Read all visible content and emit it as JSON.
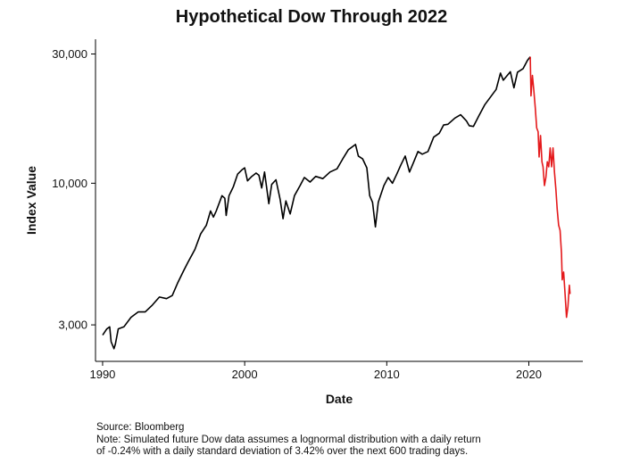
{
  "chart_data": {
    "type": "line",
    "title": "Hypothetical Dow Through 2022",
    "xlabel": "Date",
    "ylabel": "Index Value",
    "yscale": "log",
    "xlim": [
      1989.5,
      2023.8
    ],
    "ylim": [
      2200,
      34000
    ],
    "x_ticks": [
      1990,
      2000,
      2010,
      2020
    ],
    "x_tick_labels": [
      "1990",
      "2000",
      "2010",
      "2020"
    ],
    "y_ticks": [
      3000,
      10000,
      30000
    ],
    "y_tick_labels": [
      "3,000",
      "10,000",
      "30,000"
    ],
    "grid": false,
    "legend": "none",
    "series": [
      {
        "color": "#000000",
        "points": [
          [
            1990.0,
            2750
          ],
          [
            1990.3,
            2900
          ],
          [
            1990.5,
            2950
          ],
          [
            1990.6,
            2600
          ],
          [
            1990.8,
            2450
          ],
          [
            1990.9,
            2550
          ],
          [
            1991.1,
            2900
          ],
          [
            1991.5,
            2950
          ],
          [
            1992.0,
            3200
          ],
          [
            1992.5,
            3350
          ],
          [
            1993.0,
            3350
          ],
          [
            1993.5,
            3550
          ],
          [
            1994.0,
            3800
          ],
          [
            1994.5,
            3750
          ],
          [
            1994.9,
            3850
          ],
          [
            1995.3,
            4300
          ],
          [
            1995.7,
            4750
          ],
          [
            1996.0,
            5100
          ],
          [
            1996.5,
            5700
          ],
          [
            1996.9,
            6500
          ],
          [
            1997.3,
            7000
          ],
          [
            1997.6,
            7900
          ],
          [
            1997.8,
            7500
          ],
          [
            1998.0,
            7900
          ],
          [
            1998.4,
            9000
          ],
          [
            1998.6,
            8800
          ],
          [
            1998.7,
            7600
          ],
          [
            1998.9,
            9000
          ],
          [
            1999.2,
            9700
          ],
          [
            1999.5,
            10800
          ],
          [
            1999.8,
            11200
          ],
          [
            2000.0,
            11400
          ],
          [
            2000.2,
            10200
          ],
          [
            2000.5,
            10600
          ],
          [
            2000.8,
            10900
          ],
          [
            2001.0,
            10700
          ],
          [
            2001.2,
            9600
          ],
          [
            2001.4,
            11000
          ],
          [
            2001.7,
            8400
          ],
          [
            2001.9,
            9900
          ],
          [
            2002.2,
            10300
          ],
          [
            2002.5,
            8700
          ],
          [
            2002.7,
            7400
          ],
          [
            2002.9,
            8600
          ],
          [
            2003.2,
            7700
          ],
          [
            2003.5,
            9000
          ],
          [
            2003.9,
            9800
          ],
          [
            2004.2,
            10500
          ],
          [
            2004.6,
            10100
          ],
          [
            2005.0,
            10600
          ],
          [
            2005.5,
            10400
          ],
          [
            2006.0,
            11000
          ],
          [
            2006.5,
            11300
          ],
          [
            2006.9,
            12300
          ],
          [
            2007.3,
            13300
          ],
          [
            2007.8,
            13900
          ],
          [
            2008.0,
            12600
          ],
          [
            2008.3,
            12300
          ],
          [
            2008.6,
            11400
          ],
          [
            2008.8,
            9000
          ],
          [
            2009.0,
            8500
          ],
          [
            2009.2,
            6900
          ],
          [
            2009.4,
            8500
          ],
          [
            2009.8,
            9800
          ],
          [
            2010.1,
            10500
          ],
          [
            2010.4,
            10000
          ],
          [
            2010.7,
            10800
          ],
          [
            2011.0,
            11700
          ],
          [
            2011.3,
            12600
          ],
          [
            2011.6,
            11000
          ],
          [
            2011.9,
            12000
          ],
          [
            2012.2,
            13100
          ],
          [
            2012.5,
            12800
          ],
          [
            2012.9,
            13100
          ],
          [
            2013.3,
            14800
          ],
          [
            2013.7,
            15300
          ],
          [
            2014.0,
            16400
          ],
          [
            2014.3,
            16500
          ],
          [
            2014.8,
            17400
          ],
          [
            2015.2,
            17900
          ],
          [
            2015.6,
            17000
          ],
          [
            2015.8,
            16300
          ],
          [
            2016.1,
            16200
          ],
          [
            2016.5,
            17800
          ],
          [
            2016.9,
            19500
          ],
          [
            2017.3,
            20800
          ],
          [
            2017.7,
            22200
          ],
          [
            2018.0,
            25500
          ],
          [
            2018.2,
            24000
          ],
          [
            2018.7,
            25800
          ],
          [
            2018.95,
            22500
          ],
          [
            2019.2,
            25700
          ],
          [
            2019.6,
            26500
          ],
          [
            2019.9,
            28400
          ],
          [
            2020.1,
            29300
          ]
        ]
      },
      {
        "color": "#e41a1c",
        "points": [
          [
            2020.1,
            29300
          ],
          [
            2020.15,
            21000
          ],
          [
            2020.25,
            25000
          ],
          [
            2020.35,
            22000
          ],
          [
            2020.45,
            19000
          ],
          [
            2020.55,
            16000
          ],
          [
            2020.65,
            15500
          ],
          [
            2020.72,
            12500
          ],
          [
            2020.82,
            15000
          ],
          [
            2020.92,
            12000
          ],
          [
            2021.0,
            11500
          ],
          [
            2021.1,
            9800
          ],
          [
            2021.2,
            10500
          ],
          [
            2021.3,
            12000
          ],
          [
            2021.4,
            11500
          ],
          [
            2021.5,
            13500
          ],
          [
            2021.6,
            11500
          ],
          [
            2021.7,
            13500
          ],
          [
            2021.8,
            11000
          ],
          [
            2021.9,
            9500
          ],
          [
            2022.0,
            8000
          ],
          [
            2022.1,
            7000
          ],
          [
            2022.2,
            6700
          ],
          [
            2022.3,
            5500
          ],
          [
            2022.35,
            4400
          ],
          [
            2022.45,
            4700
          ],
          [
            2022.55,
            3900
          ],
          [
            2022.65,
            3200
          ],
          [
            2022.75,
            3500
          ],
          [
            2022.85,
            4200
          ],
          [
            2022.9,
            3900
          ]
        ]
      }
    ]
  },
  "notes": {
    "source": "Source:  Bloomberg",
    "note_line1": "Note: Simulated future Dow data assumes a lognormal distribution with a daily return",
    "note_line2": "of -0.24% with a daily standard deviation of 3.42% over the next 600 trading days."
  }
}
